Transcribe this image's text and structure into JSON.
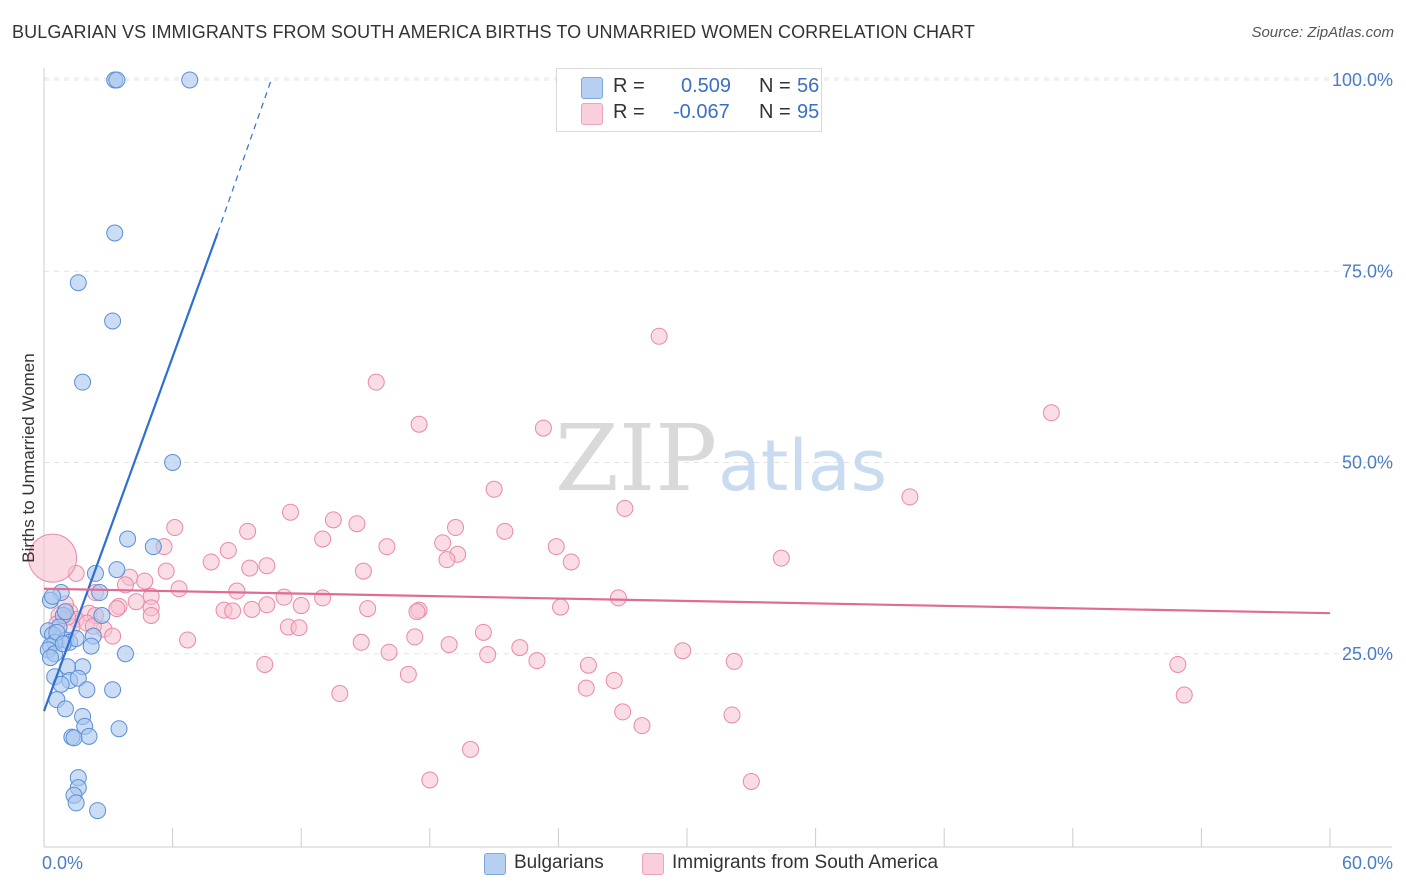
{
  "header": {
    "title": "BULGARIAN VS IMMIGRANTS FROM SOUTH AMERICA BIRTHS TO UNMARRIED WOMEN CORRELATION CHART",
    "source": "Source: ZipAtlas.com"
  },
  "watermark": {
    "zip": "ZIP",
    "atlas": "atlas"
  },
  "legend": {
    "rows": [
      {
        "r_label": "R =",
        "r_value": "0.509",
        "n_label": "N =",
        "n_value": "56"
      },
      {
        "r_label": "R =",
        "r_value": "-0.067",
        "n_label": "N =",
        "n_value": "95"
      }
    ]
  },
  "bottom_legend": {
    "series1": "Bulgarians",
    "series2": "Immigrants from South America"
  },
  "colors": {
    "blue_fill": "#a9c6ee",
    "blue_stroke": "#5b8fd6",
    "blue_line": "#2e6fcf",
    "pink_fill": "#f6bfd0",
    "pink_stroke": "#e88aa8",
    "pink_line": "#e06c95",
    "grid": "#e3e3e3",
    "axis_text": "#4a7cc7"
  },
  "chart_data": {
    "type": "scatter",
    "title": "BULGARIAN VS IMMIGRANTS FROM SOUTH AMERICA BIRTHS TO UNMARRIED WOMEN CORRELATION CHART",
    "xlabel": "",
    "ylabel": "Births to Unmarried Women",
    "xlim": [
      0,
      60
    ],
    "ylim": [
      0,
      105
    ],
    "x_tick_labels": [
      "0.0%",
      "60.0%"
    ],
    "y_ticks": [
      25,
      50,
      75,
      100
    ],
    "y_tick_labels": [
      "25.0%",
      "50.0%",
      "75.0%",
      "100.0%"
    ],
    "grid": true,
    "legend_position": "top-center",
    "series": [
      {
        "name": "Bulgarians",
        "r": 0.509,
        "n": 56,
        "trend": {
          "x0": 0,
          "y0": 17.5,
          "x1": 8.1,
          "y1": 80,
          "dash_to_x": 10.6,
          "dash_to_y": 100
        },
        "points": [
          [
            3.3,
            100
          ],
          [
            3.4,
            100
          ],
          [
            6.8,
            100
          ],
          [
            3.3,
            80
          ],
          [
            1.6,
            73.5
          ],
          [
            3.2,
            68.5
          ],
          [
            1.8,
            60.5
          ],
          [
            6.0,
            50
          ],
          [
            3.9,
            40
          ],
          [
            5.1,
            39
          ],
          [
            3.4,
            36
          ],
          [
            2.4,
            35.5
          ],
          [
            0.8,
            33
          ],
          [
            2.6,
            33
          ],
          [
            0.3,
            32
          ],
          [
            0.9,
            30
          ],
          [
            1.0,
            30.5
          ],
          [
            2.7,
            30
          ],
          [
            0.7,
            28.5
          ],
          [
            0.2,
            28
          ],
          [
            0.4,
            27.5
          ],
          [
            2.3,
            27.3
          ],
          [
            1.0,
            26.8
          ],
          [
            1.2,
            26.5
          ],
          [
            0.5,
            26.5
          ],
          [
            0.3,
            26
          ],
          [
            0.2,
            25.5
          ],
          [
            0.5,
            25
          ],
          [
            3.8,
            25
          ],
          [
            0.3,
            24.5
          ],
          [
            1.8,
            23.3
          ],
          [
            1.1,
            23.3
          ],
          [
            0.5,
            22
          ],
          [
            1.2,
            21.5
          ],
          [
            1.6,
            21.8
          ],
          [
            0.8,
            21
          ],
          [
            2.0,
            20.3
          ],
          [
            3.2,
            20.3
          ],
          [
            0.6,
            19
          ],
          [
            1.0,
            17.8
          ],
          [
            1.8,
            16.8
          ],
          [
            1.9,
            15.5
          ],
          [
            3.5,
            15.2
          ],
          [
            2.1,
            14.2
          ],
          [
            1.3,
            14.1
          ],
          [
            1.4,
            14
          ],
          [
            1.6,
            8.8
          ],
          [
            1.6,
            7.5
          ],
          [
            1.4,
            6.5
          ],
          [
            1.5,
            5.5
          ],
          [
            2.5,
            4.5
          ],
          [
            0.4,
            32.5
          ],
          [
            0.6,
            27.8
          ],
          [
            1.5,
            27
          ],
          [
            0.9,
            26.3
          ],
          [
            2.2,
            26
          ]
        ]
      },
      {
        "name": "Immigrants from South America",
        "r": -0.067,
        "n": 95,
        "trend": {
          "x0": 0,
          "y0": 33.5,
          "x1": 60,
          "y1": 30.3
        },
        "points": [
          [
            28.7,
            66.5
          ],
          [
            15.5,
            60.5
          ],
          [
            47.0,
            56.5
          ],
          [
            17.5,
            55
          ],
          [
            23.3,
            54.5
          ],
          [
            21.0,
            46.5
          ],
          [
            40.4,
            45.5
          ],
          [
            27.1,
            44
          ],
          [
            11.5,
            43.5
          ],
          [
            13.5,
            42.5
          ],
          [
            14.6,
            42
          ],
          [
            19.2,
            41.5
          ],
          [
            6.1,
            41.5
          ],
          [
            9.5,
            41
          ],
          [
            21.5,
            41
          ],
          [
            13.0,
            40
          ],
          [
            18.6,
            39.5
          ],
          [
            5.6,
            39
          ],
          [
            16.0,
            39
          ],
          [
            23.9,
            39
          ],
          [
            8.6,
            38.5
          ],
          [
            19.3,
            38
          ],
          [
            34.4,
            37.5
          ],
          [
            24.6,
            37
          ],
          [
            18.8,
            37.3
          ],
          [
            7.8,
            37
          ],
          [
            10.4,
            36.5
          ],
          [
            9.6,
            36.2
          ],
          [
            14.9,
            35.8
          ],
          [
            5.7,
            35.8
          ],
          [
            1.5,
            35.5
          ],
          [
            4.0,
            35
          ],
          [
            4.7,
            34.5
          ],
          [
            3.8,
            34
          ],
          [
            6.3,
            33.5
          ],
          [
            9.0,
            33.2
          ],
          [
            2.4,
            33
          ],
          [
            5.0,
            32.5
          ],
          [
            11.2,
            32.4
          ],
          [
            13.0,
            32.3
          ],
          [
            26.8,
            32.3
          ],
          [
            10.4,
            31.4
          ],
          [
            3.5,
            31.2
          ],
          [
            12.0,
            31.3
          ],
          [
            5.0,
            31
          ],
          [
            9.7,
            30.8
          ],
          [
            24.1,
            31.1
          ],
          [
            17.5,
            30.7
          ],
          [
            8.4,
            30.7
          ],
          [
            8.8,
            30.6
          ],
          [
            15.1,
            30.9
          ],
          [
            17.4,
            30.5
          ],
          [
            1.2,
            30.5
          ],
          [
            2.1,
            30.3
          ],
          [
            2.4,
            30
          ],
          [
            5.0,
            30
          ],
          [
            1.5,
            29.5
          ],
          [
            2.0,
            29
          ],
          [
            1.3,
            28.5
          ],
          [
            11.4,
            28.5
          ],
          [
            11.9,
            28.4
          ],
          [
            2.8,
            28.2
          ],
          [
            20.5,
            27.8
          ],
          [
            17.3,
            27.2
          ],
          [
            3.2,
            27.3
          ],
          [
            6.7,
            26.8
          ],
          [
            14.8,
            26.5
          ],
          [
            18.9,
            26.2
          ],
          [
            22.2,
            25.8
          ],
          [
            29.8,
            25.4
          ],
          [
            20.7,
            24.9
          ],
          [
            16.1,
            25.2
          ],
          [
            23.0,
            24.1
          ],
          [
            32.2,
            24.0
          ],
          [
            10.3,
            23.6
          ],
          [
            25.4,
            23.5
          ],
          [
            52.9,
            23.6
          ],
          [
            17.0,
            22.3
          ],
          [
            26.6,
            21.5
          ],
          [
            25.3,
            20.5
          ],
          [
            13.8,
            19.8
          ],
          [
            53.2,
            19.6
          ],
          [
            27.0,
            17.4
          ],
          [
            32.1,
            17.0
          ],
          [
            27.9,
            15.6
          ],
          [
            19.9,
            12.5
          ],
          [
            18.0,
            8.5
          ],
          [
            33.0,
            8.3
          ],
          [
            0.7,
            30
          ],
          [
            1.1,
            29.8
          ],
          [
            1.0,
            31.5
          ],
          [
            4.3,
            31.8
          ],
          [
            2.3,
            28.6
          ],
          [
            3.4,
            30.9
          ],
          [
            0.6,
            28.9
          ]
        ],
        "large_points": [
          [
            0.4,
            37.5
          ]
        ]
      }
    ]
  }
}
